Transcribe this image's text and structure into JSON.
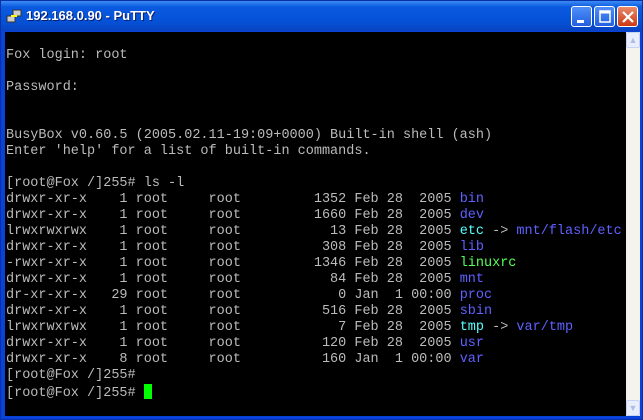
{
  "window": {
    "title": "192.168.0.90 - PuTTY",
    "icon": "putty-icon"
  },
  "colors": {
    "default": "#bbbbbb",
    "dir": "#6060ff",
    "link": "#55ffff",
    "exec": "#55ff55",
    "cursor": "#00ff00",
    "bg": "#000000"
  },
  "terminal": {
    "lines": [
      [],
      [
        {
          "t": "Fox login: root"
        }
      ],
      [],
      [
        {
          "t": "Password:"
        }
      ],
      [],
      [],
      [
        {
          "t": "BusyBox v0.60.5 (2005.02.11-19:09+0000) Built-in shell (ash)"
        }
      ],
      [
        {
          "t": "Enter 'help' for a list of built-in commands."
        }
      ],
      [],
      [
        {
          "t": "[root@Fox /]255# ls -l"
        }
      ],
      [
        {
          "t": "drwxr-xr-x    1 root     root         1352 Feb 28  2005 "
        },
        {
          "t": "bin",
          "c": "dir"
        }
      ],
      [
        {
          "t": "drwxr-xr-x    1 root     root         1660 Feb 28  2005 "
        },
        {
          "t": "dev",
          "c": "dir"
        }
      ],
      [
        {
          "t": "lrwxrwxrwx    1 root     root           13 Feb 28  2005 "
        },
        {
          "t": "etc",
          "c": "link"
        },
        {
          "t": " -> "
        },
        {
          "t": "mnt/flash/etc",
          "c": "dir"
        }
      ],
      [
        {
          "t": "drwxr-xr-x    1 root     root          308 Feb 28  2005 "
        },
        {
          "t": "lib",
          "c": "dir"
        }
      ],
      [
        {
          "t": "-rwxr-xr-x    1 root     root         1346 Feb 28  2005 "
        },
        {
          "t": "linuxrc",
          "c": "exec"
        }
      ],
      [
        {
          "t": "drwxr-xr-x    1 root     root           84 Feb 28  2005 "
        },
        {
          "t": "mnt",
          "c": "dir"
        }
      ],
      [
        {
          "t": "dr-xr-xr-x   29 root     root            0 Jan  1 00:00 "
        },
        {
          "t": "proc",
          "c": "dir"
        }
      ],
      [
        {
          "t": "drwxr-xr-x    1 root     root          516 Feb 28  2005 "
        },
        {
          "t": "sbin",
          "c": "dir"
        }
      ],
      [
        {
          "t": "lrwxrwxrwx    1 root     root            7 Feb 28  2005 "
        },
        {
          "t": "tmp",
          "c": "link"
        },
        {
          "t": " -> "
        },
        {
          "t": "var/tmp",
          "c": "dir"
        }
      ],
      [
        {
          "t": "drwxr-xr-x    1 root     root          120 Feb 28  2005 "
        },
        {
          "t": "usr",
          "c": "dir"
        }
      ],
      [
        {
          "t": "drwxr-xr-x    8 root     root          160 Jan  1 00:00 "
        },
        {
          "t": "var",
          "c": "dir"
        }
      ],
      [
        {
          "t": "[root@Fox /]255#"
        }
      ],
      [
        {
          "t": "[root@Fox /]255# "
        },
        {
          "cursor": true
        }
      ]
    ]
  }
}
